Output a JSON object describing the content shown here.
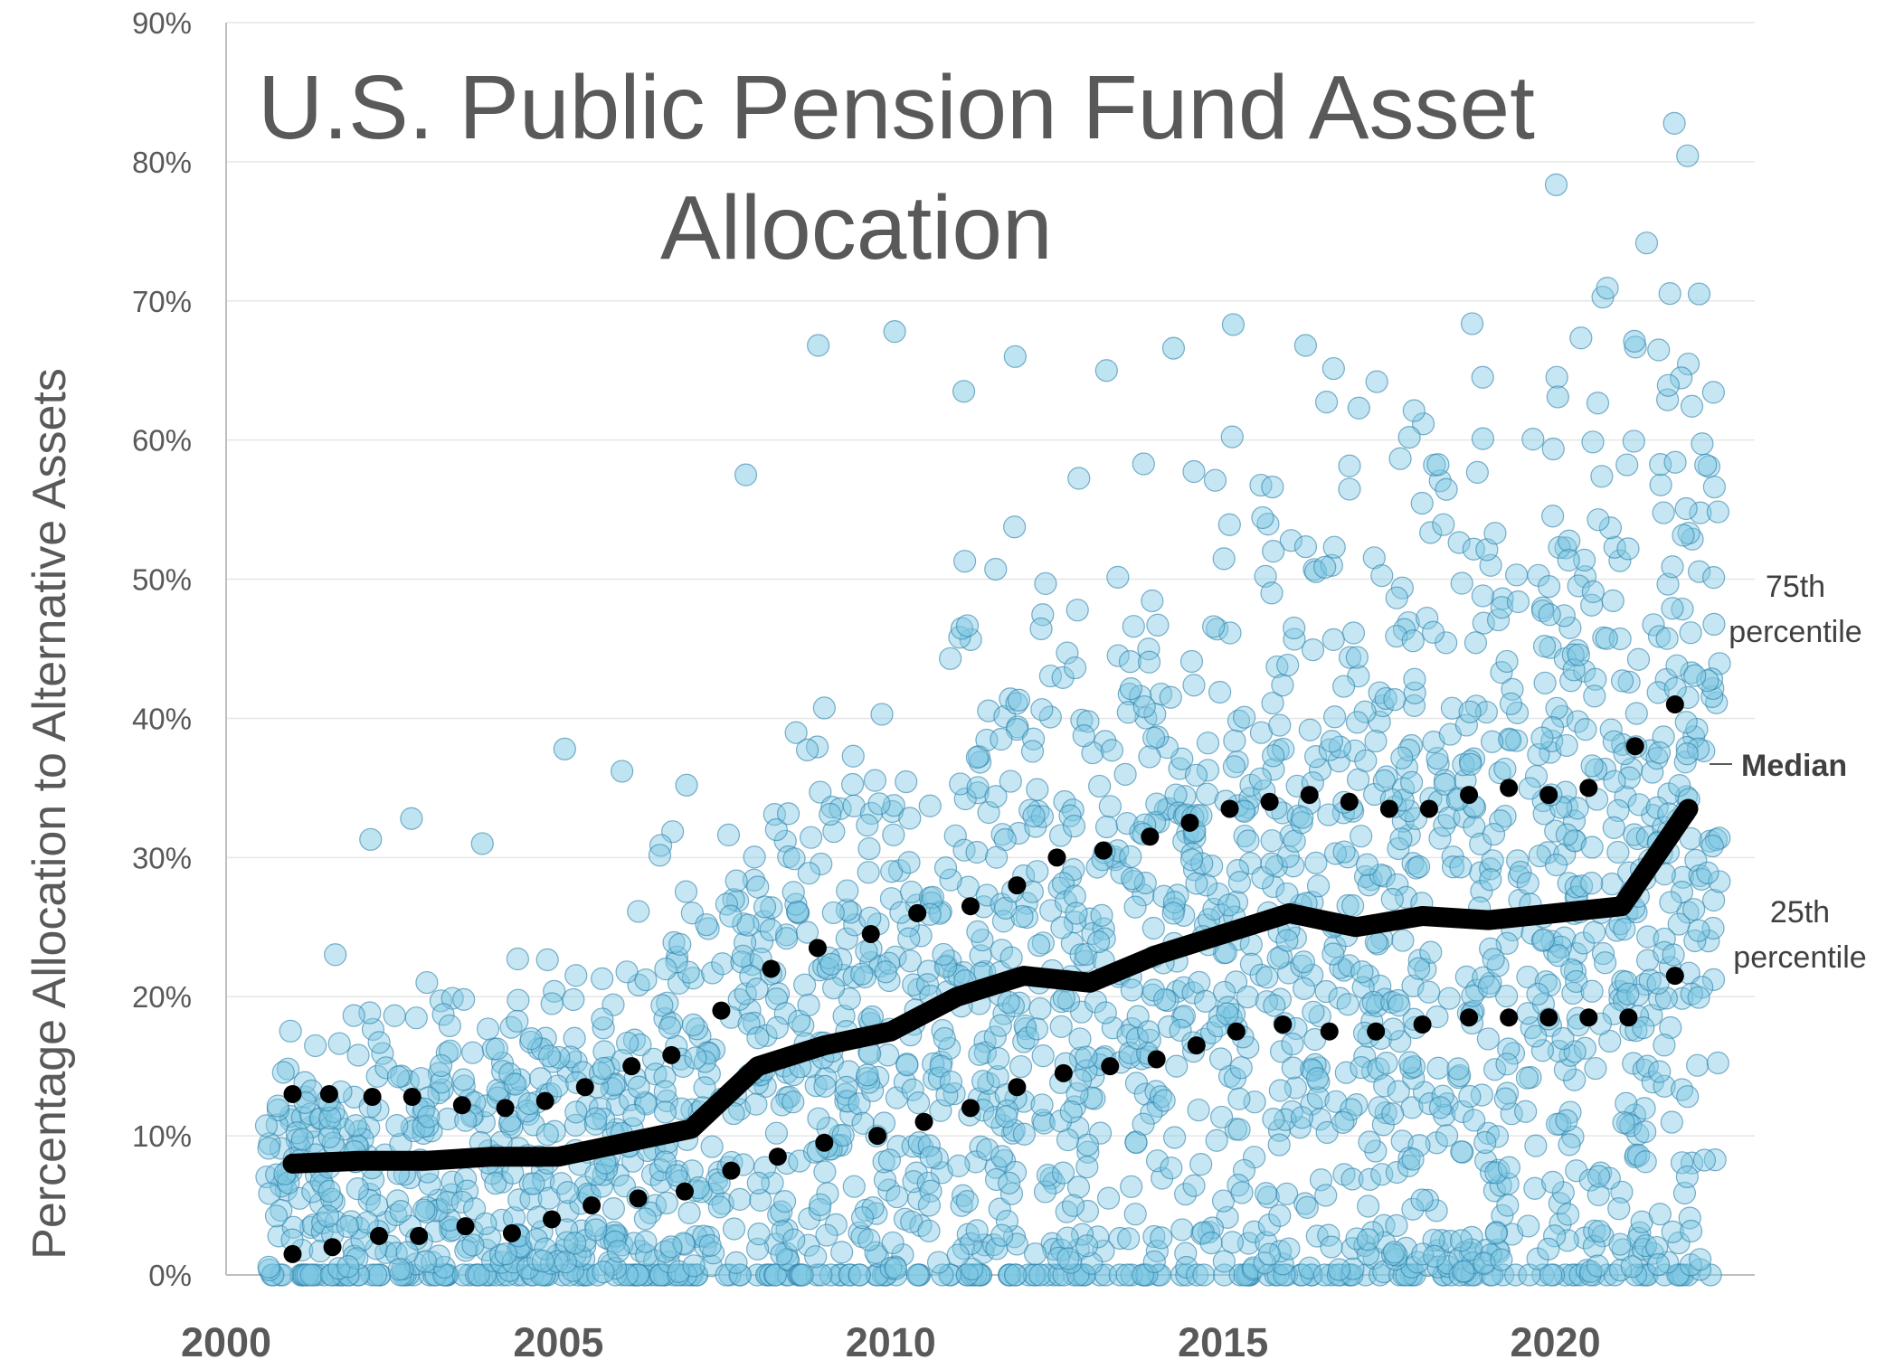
{
  "chart_data": {
    "type": "scatter",
    "title_line1": "U.S. Public Pension Fund Asset",
    "title_line2": "Allocation",
    "xlabel": "",
    "ylabel": "Percentage Allocation to Alternative Assets",
    "xlim": [
      2000,
      2023
    ],
    "ylim": [
      0,
      90
    ],
    "x_ticks": [
      "2000",
      "2005",
      "2010",
      "2015",
      "2020"
    ],
    "y_ticks": [
      "0%",
      "10%",
      "20%",
      "30%",
      "40%",
      "50%",
      "60%",
      "70%",
      "80%",
      "90%"
    ],
    "grid": true,
    "colors": {
      "points_fill": "#7ec8e3",
      "points_stroke": "#2a7fa8",
      "median": "#000000",
      "percentiles": "#000000",
      "text": "#595959"
    },
    "annotations": {
      "p75_line1": "75th",
      "p75_line2": "percentile",
      "median": "Median",
      "p25_line1": "25th",
      "p25_line2": "percentile"
    },
    "median": {
      "x": [
        2001,
        2002,
        2003,
        2004,
        2005,
        2006,
        2007,
        2008,
        2009,
        2010,
        2011,
        2012,
        2013,
        2014,
        2015,
        2016,
        2017,
        2018,
        2019,
        2020,
        2021,
        2022
      ],
      "y": [
        8,
        8.2,
        8.2,
        8.5,
        8.5,
        9.5,
        10.5,
        15,
        16.5,
        17.5,
        20,
        21.5,
        21,
        23,
        24.5,
        26,
        25,
        25.8,
        25.5,
        26,
        26.5,
        33.5
      ]
    },
    "percentile_75": {
      "x": [
        2001,
        2001.55,
        2002.2,
        2002.8,
        2003.55,
        2004.2,
        2004.8,
        2005.4,
        2006.1,
        2006.7,
        2007.45,
        2008.2,
        2008.9,
        2009.7,
        2010.4,
        2011.2,
        2011.9,
        2012.5,
        2013.2,
        2013.9,
        2014.5,
        2015.1,
        2015.7,
        2016.3,
        2016.9,
        2017.5,
        2018.1,
        2018.7,
        2019.3,
        2019.9,
        2020.5,
        2021.2,
        2021.8
      ],
      "y": [
        13,
        13,
        12.8,
        12.8,
        12.2,
        12,
        12.5,
        13.5,
        15,
        15.8,
        19,
        22,
        23.5,
        24.5,
        26,
        26.5,
        28,
        30,
        30.5,
        31.5,
        32.5,
        33.5,
        34,
        34.5,
        34,
        33.5,
        33.5,
        34.5,
        35,
        34.5,
        35,
        38,
        41
      ]
    },
    "percentile_25": {
      "x": [
        2001,
        2001.6,
        2002.3,
        2002.9,
        2003.6,
        2004.3,
        2004.9,
        2005.5,
        2006.2,
        2006.9,
        2007.6,
        2008.3,
        2009,
        2009.8,
        2010.5,
        2011.2,
        2011.9,
        2012.6,
        2013.3,
        2014,
        2014.6,
        2015.2,
        2015.9,
        2016.6,
        2017.3,
        2018,
        2018.7,
        2019.3,
        2019.9,
        2020.5,
        2021.1,
        2021.8
      ],
      "y": [
        1.5,
        2,
        2.8,
        2.8,
        3.5,
        3,
        4,
        5,
        5.5,
        6,
        7.5,
        8.5,
        9.5,
        10,
        11,
        12,
        13.5,
        14.5,
        15,
        15.5,
        16.5,
        17.5,
        18,
        17.5,
        17.5,
        18,
        18.5,
        18.5,
        18.5,
        18.5,
        18.5,
        21.5
      ]
    },
    "outliers": {
      "x": [
        2002,
        2003,
        2004,
        2005,
        2006,
        2007,
        2008,
        2009,
        2010,
        2011,
        2012,
        2013,
        2014,
        2015,
        2016,
        2017,
        2018,
        2019,
        2020,
        2021,
        2022
      ],
      "y": [
        31.3,
        32.8,
        31,
        37.8,
        36.2,
        35.2,
        57.5,
        66.8,
        67.8,
        63.5,
        66,
        65,
        66.6,
        68.3,
        66.8,
        62.3,
        60.2,
        60.1,
        63.1,
        67.1,
        70.5
      ]
    }
  }
}
